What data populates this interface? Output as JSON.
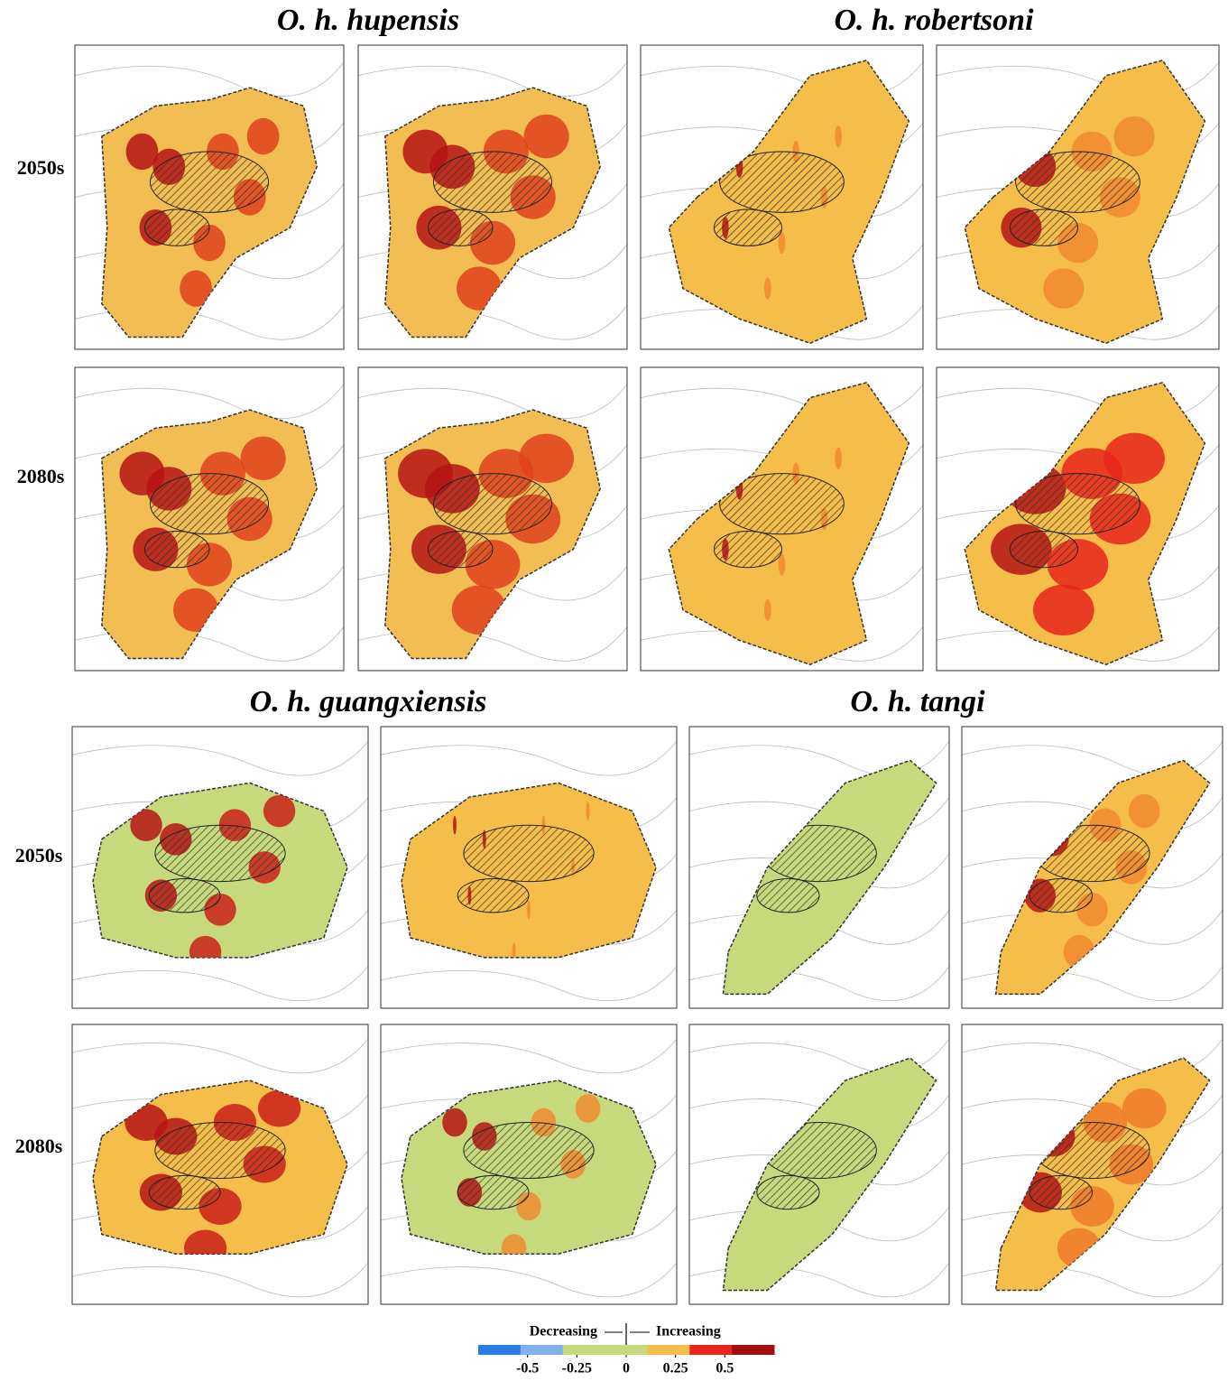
{
  "figure": {
    "groups": [
      {
        "title": "O. h. hupensis",
        "title2": "O. h. robertsoni",
        "rows": [
          "2050s",
          "2080s"
        ]
      },
      {
        "title": "O. h. guangxiensis",
        "title2": "O. h. tangi",
        "rows": [
          "2050s",
          "2080s"
        ]
      }
    ],
    "legend": {
      "left": "Decreasing",
      "right": "Increasing",
      "colors": [
        "#2b7be4",
        "#7fb1ee",
        "#c6d97c",
        "#c6d97c",
        "#f5bd4a",
        "#e8241c",
        "#a30d0d"
      ],
      "lim": [
        -0.75,
        0.75
      ],
      "ticks": [
        -0.5,
        -0.25,
        0,
        0.25,
        0.5
      ]
    }
  }
}
